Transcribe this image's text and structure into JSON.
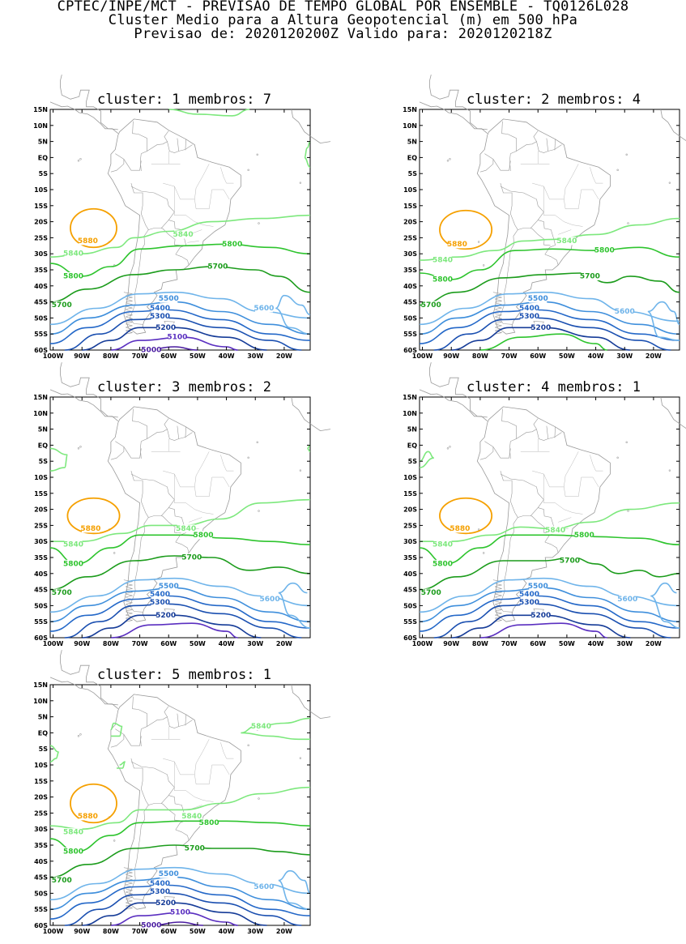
{
  "header": {
    "line1": "CPTEC/INPE/MCT - PREVISAO DE TEMPO GLOBAL POR ENSEMBLE - TQ0126L028",
    "line2": "Cluster Medio para a Altura Geopotencial (m) em 500 hPa",
    "line3": "Previsao de: 2020120200Z    Valido para: 2020120218Z"
  },
  "lat_ticks": [
    "15N",
    "10N",
    "5N",
    "EQ",
    "5S",
    "10S",
    "15S",
    "20S",
    "25S",
    "30S",
    "35S",
    "40S",
    "45S",
    "50S",
    "55S",
    "60S"
  ],
  "lon_ticks": [
    "100W",
    "90W",
    "80W",
    "70W",
    "60W",
    "50W",
    "40W",
    "30W",
    "20W"
  ],
  "colors": {
    "c5880": "#f5a000",
    "c5840": "#7de87d",
    "c5800": "#2ec42e",
    "c5700": "#1c9c1c",
    "c5600": "#6fb4ea",
    "c5500": "#3f8fdc",
    "c5400": "#2468c8",
    "c5300": "#1a4fb0",
    "c5200": "#163c98",
    "c5100": "#5a2fc0",
    "c5000": "#4a1ca0",
    "coast": "#9a9a9a"
  },
  "panels": [
    {
      "title": "cluster: 1   membros: 7",
      "contour_labels": [
        {
          "text": "5880",
          "lon": -88,
          "lat": -26,
          "color": "c5880"
        },
        {
          "text": "5840",
          "lon": -55,
          "lat": -24,
          "color": "c5840"
        },
        {
          "text": "5840",
          "lon": -93,
          "lat": -30,
          "color": "c5840"
        },
        {
          "text": "5800",
          "lon": -38,
          "lat": -27,
          "color": "c5800"
        },
        {
          "text": "5800",
          "lon": -93,
          "lat": -37,
          "color": "c5800"
        },
        {
          "text": "5700",
          "lon": -43,
          "lat": -34,
          "color": "c5700"
        },
        {
          "text": "5700",
          "lon": -97,
          "lat": -46,
          "color": "c5700"
        },
        {
          "text": "5600",
          "lon": -27,
          "lat": -47,
          "color": "c5600"
        },
        {
          "text": "5500",
          "lon": -60,
          "lat": -44,
          "color": "c5500"
        },
        {
          "text": "5400",
          "lon": -63,
          "lat": -47,
          "color": "c5400"
        },
        {
          "text": "5300",
          "lon": -63,
          "lat": -49.5,
          "color": "c5300"
        },
        {
          "text": "5200",
          "lon": -61,
          "lat": -53,
          "color": "c5200"
        },
        {
          "text": "5100",
          "lon": -57,
          "lat": -56,
          "color": "c5100"
        },
        {
          "text": "5000",
          "lon": -66,
          "lat": -60,
          "color": "c5000"
        }
      ]
    },
    {
      "title": "cluster: 2   membros: 4",
      "contour_labels": [
        {
          "text": "5880",
          "lon": -88,
          "lat": -27,
          "color": "c5880"
        },
        {
          "text": "5840",
          "lon": -50,
          "lat": -26,
          "color": "c5840"
        },
        {
          "text": "5840",
          "lon": -93,
          "lat": -32,
          "color": "c5840"
        },
        {
          "text": "5800",
          "lon": -37,
          "lat": -29,
          "color": "c5800"
        },
        {
          "text": "5800",
          "lon": -93,
          "lat": -38,
          "color": "c5800"
        },
        {
          "text": "5700",
          "lon": -42,
          "lat": -37,
          "color": "c5700"
        },
        {
          "text": "5700",
          "lon": -97,
          "lat": -46,
          "color": "c5700"
        },
        {
          "text": "5600",
          "lon": -30,
          "lat": -48,
          "color": "c5600"
        },
        {
          "text": "5500",
          "lon": -60,
          "lat": -44,
          "color": "c5500"
        },
        {
          "text": "5400",
          "lon": -63,
          "lat": -47,
          "color": "c5400"
        },
        {
          "text": "5300",
          "lon": -63,
          "lat": -49.5,
          "color": "c5300"
        },
        {
          "text": "5200",
          "lon": -59,
          "lat": -53,
          "color": "c5200"
        }
      ]
    },
    {
      "title": "cluster: 3   membros: 2",
      "contour_labels": [
        {
          "text": "5880",
          "lon": -87,
          "lat": -26,
          "color": "c5880"
        },
        {
          "text": "5840",
          "lon": -54,
          "lat": -26,
          "color": "c5840"
        },
        {
          "text": "5840",
          "lon": -93,
          "lat": -31,
          "color": "c5840"
        },
        {
          "text": "5800",
          "lon": -48,
          "lat": -28,
          "color": "c5800"
        },
        {
          "text": "5800",
          "lon": -93,
          "lat": -37,
          "color": "c5800"
        },
        {
          "text": "5700",
          "lon": -52,
          "lat": -35,
          "color": "c5700"
        },
        {
          "text": "5700",
          "lon": -97,
          "lat": -46,
          "color": "c5700"
        },
        {
          "text": "5600",
          "lon": -25,
          "lat": -48,
          "color": "c5600"
        },
        {
          "text": "5500",
          "lon": -60,
          "lat": -44,
          "color": "c5500"
        },
        {
          "text": "5400",
          "lon": -63,
          "lat": -46.5,
          "color": "c5400"
        },
        {
          "text": "5300",
          "lon": -63,
          "lat": -49,
          "color": "c5300"
        },
        {
          "text": "5200",
          "lon": -61,
          "lat": -53,
          "color": "c5200"
        }
      ]
    },
    {
      "title": "cluster: 4   membros: 1",
      "contour_labels": [
        {
          "text": "5880",
          "lon": -87,
          "lat": -26,
          "color": "c5880"
        },
        {
          "text": "5840",
          "lon": -54,
          "lat": -26.5,
          "color": "c5840"
        },
        {
          "text": "5840",
          "lon": -93,
          "lat": -31,
          "color": "c5840"
        },
        {
          "text": "5800",
          "lon": -44,
          "lat": -28,
          "color": "c5800"
        },
        {
          "text": "5800",
          "lon": -93,
          "lat": -37,
          "color": "c5800"
        },
        {
          "text": "5700",
          "lon": -49,
          "lat": -36,
          "color": "c5700"
        },
        {
          "text": "5700",
          "lon": -97,
          "lat": -46,
          "color": "c5700"
        },
        {
          "text": "5600",
          "lon": -29,
          "lat": -48,
          "color": "c5600"
        },
        {
          "text": "5500",
          "lon": -60,
          "lat": -44,
          "color": "c5500"
        },
        {
          "text": "5400",
          "lon": -63,
          "lat": -46.5,
          "color": "c5400"
        },
        {
          "text": "5300",
          "lon": -63,
          "lat": -49,
          "color": "c5300"
        },
        {
          "text": "5200",
          "lon": -59,
          "lat": -53,
          "color": "c5200"
        }
      ]
    },
    {
      "title": "cluster: 5   membros: 1",
      "contour_labels": [
        {
          "text": "5840",
          "lon": -28,
          "lat": 2,
          "color": "c5840"
        },
        {
          "text": "5880",
          "lon": -88,
          "lat": -26,
          "color": "c5880"
        },
        {
          "text": "5840",
          "lon": -52,
          "lat": -26,
          "color": "c5840"
        },
        {
          "text": "5840",
          "lon": -93,
          "lat": -31,
          "color": "c5840"
        },
        {
          "text": "5800",
          "lon": -46,
          "lat": -28,
          "color": "c5800"
        },
        {
          "text": "5800",
          "lon": -93,
          "lat": -37,
          "color": "c5800"
        },
        {
          "text": "5700",
          "lon": -51,
          "lat": -36,
          "color": "c5700"
        },
        {
          "text": "5700",
          "lon": -97,
          "lat": -46,
          "color": "c5700"
        },
        {
          "text": "5600",
          "lon": -27,
          "lat": -48,
          "color": "c5600"
        },
        {
          "text": "5500",
          "lon": -60,
          "lat": -44,
          "color": "c5500"
        },
        {
          "text": "5400",
          "lon": -63,
          "lat": -47,
          "color": "c5400"
        },
        {
          "text": "5300",
          "lon": -63,
          "lat": -49.5,
          "color": "c5300"
        },
        {
          "text": "5200",
          "lon": -61,
          "lat": -53,
          "color": "c5200"
        },
        {
          "text": "5100",
          "lon": -56,
          "lat": -56,
          "color": "c5100"
        },
        {
          "text": "5000",
          "lon": -66,
          "lat": -60,
          "color": "c5000"
        }
      ]
    }
  ]
}
